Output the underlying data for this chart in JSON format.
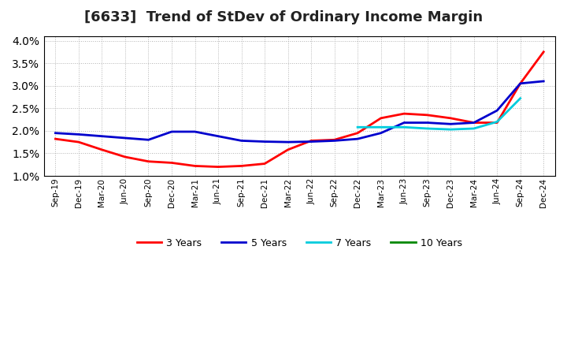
{
  "title": "[6633]  Trend of StDev of Ordinary Income Margin",
  "title_fontsize": 13,
  "ylim": [
    0.01,
    0.041
  ],
  "yticks": [
    0.01,
    0.015,
    0.02,
    0.025,
    0.03,
    0.035,
    0.04
  ],
  "background_color": "#ffffff",
  "plot_bg_color": "#ffffff",
  "grid_color": "#aaaaaa",
  "legend_labels": [
    "3 Years",
    "5 Years",
    "7 Years",
    "10 Years"
  ],
  "legend_colors": [
    "#ff0000",
    "#0000cd",
    "#00ccdd",
    "#008800"
  ],
  "x_labels": [
    "Sep-19",
    "Dec-19",
    "Mar-20",
    "Jun-20",
    "Sep-20",
    "Dec-20",
    "Mar-21",
    "Jun-21",
    "Sep-21",
    "Dec-21",
    "Mar-22",
    "Jun-22",
    "Sep-22",
    "Dec-22",
    "Mar-23",
    "Jun-23",
    "Sep-23",
    "Dec-23",
    "Mar-24",
    "Jun-24",
    "Sep-24",
    "Dec-24"
  ],
  "series_3y": [
    0.0182,
    0.0175,
    0.0158,
    0.0142,
    0.0132,
    0.0129,
    0.0122,
    0.012,
    0.0122,
    0.0127,
    0.0158,
    0.0178,
    0.018,
    0.0195,
    0.0228,
    0.0238,
    0.0235,
    0.0228,
    0.0218,
    0.0218,
    0.0305,
    0.0375
  ],
  "series_5y": [
    0.0195,
    0.0192,
    0.0188,
    0.0184,
    0.018,
    0.0198,
    0.0198,
    0.0188,
    0.0178,
    0.0176,
    0.0175,
    0.0176,
    0.0178,
    0.0182,
    0.0195,
    0.0218,
    0.0218,
    0.0215,
    0.0218,
    0.0245,
    0.0305,
    0.031
  ],
  "series_7y_full": [
    null,
    null,
    null,
    null,
    null,
    null,
    null,
    null,
    null,
    null,
    null,
    null,
    null,
    0.0208,
    0.0208,
    0.0208,
    0.0205,
    0.0203,
    0.0205,
    0.022,
    0.0272,
    null
  ],
  "series_10y_full": [
    null,
    null,
    null,
    null,
    null,
    null,
    null,
    null,
    null,
    null,
    null,
    null,
    null,
    null,
    null,
    null,
    null,
    null,
    null,
    null,
    null,
    null
  ]
}
